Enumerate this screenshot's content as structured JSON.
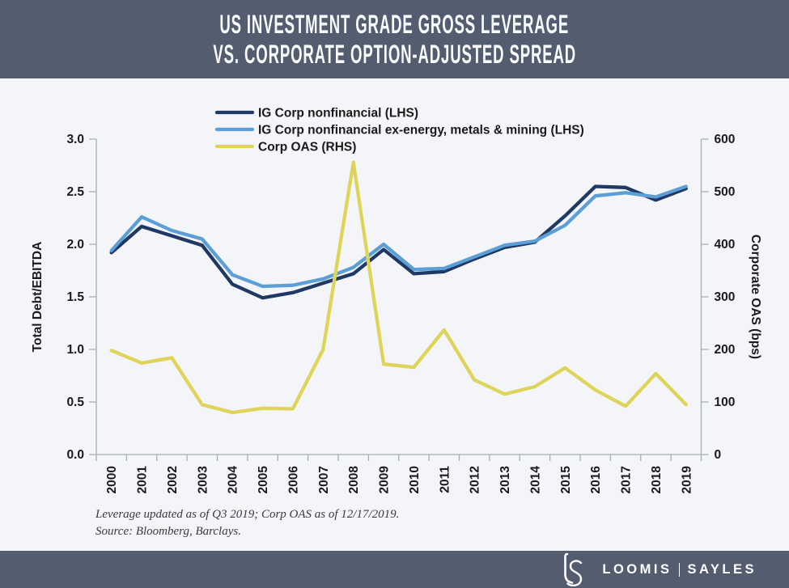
{
  "header": {
    "title_line1": "US INVESTMENT GRADE GROSS LEVERAGE",
    "title_line2": "VS. CORPORATE OPTION-ADJUSTED SPREAD",
    "bg_color": "#545C70"
  },
  "chart_data": {
    "type": "line",
    "categories": [
      "2000",
      "2001",
      "2002",
      "2003",
      "2004",
      "2005",
      "2006",
      "2007",
      "2008",
      "2009",
      "2010",
      "2011",
      "2012",
      "2013",
      "2014",
      "2015",
      "2016",
      "2017",
      "2018",
      "2019"
    ],
    "series": [
      {
        "name": "IG Corp nonfinancial (LHS)",
        "axis": "left",
        "color": "#1F3864",
        "values": [
          1.92,
          2.17,
          2.08,
          1.99,
          1.62,
          1.49,
          1.54,
          1.63,
          1.72,
          1.95,
          1.72,
          1.74,
          1.86,
          1.97,
          2.02,
          2.27,
          2.55,
          2.54,
          2.42,
          2.53
        ]
      },
      {
        "name": "IG Corp nonfinancial ex-energy, metals & mining (LHS)",
        "axis": "left",
        "color": "#5B9FD6",
        "values": [
          1.94,
          2.26,
          2.13,
          2.05,
          1.71,
          1.6,
          1.61,
          1.67,
          1.78,
          2.0,
          1.76,
          1.77,
          1.88,
          1.99,
          2.03,
          2.18,
          2.46,
          2.49,
          2.45,
          2.55
        ]
      },
      {
        "name": "Corp OAS (RHS)",
        "axis": "right",
        "color": "#DFD45A",
        "values": [
          198,
          174,
          184,
          95,
          80,
          88,
          87,
          200,
          556,
          172,
          166,
          237,
          142,
          115,
          129,
          165,
          123,
          92,
          154,
          95
        ]
      }
    ],
    "left_axis": {
      "label": "Total Debt/EBITDA",
      "min": 0,
      "max": 3,
      "step": 0.5,
      "decimals": 1
    },
    "right_axis": {
      "label": "Corporate OAS (bps)",
      "min": 0,
      "max": 600,
      "step": 100,
      "decimals": 0
    },
    "x_axis": {
      "label_rotation": -90
    },
    "grid": false,
    "legend_position": "top-center",
    "axis_color": "#A9ADB5",
    "text_color": "#1A1A1A"
  },
  "footnote": {
    "line1": "Leverage updated as of Q3 2019; Corp OAS as of 12/17/2019.",
    "line2": "Source: Bloomberg, Barclays."
  },
  "footer": {
    "brand_left": "LOOMIS",
    "brand_right": "SAYLES",
    "logo": "ls-monogram",
    "bg_color": "#545C70"
  }
}
